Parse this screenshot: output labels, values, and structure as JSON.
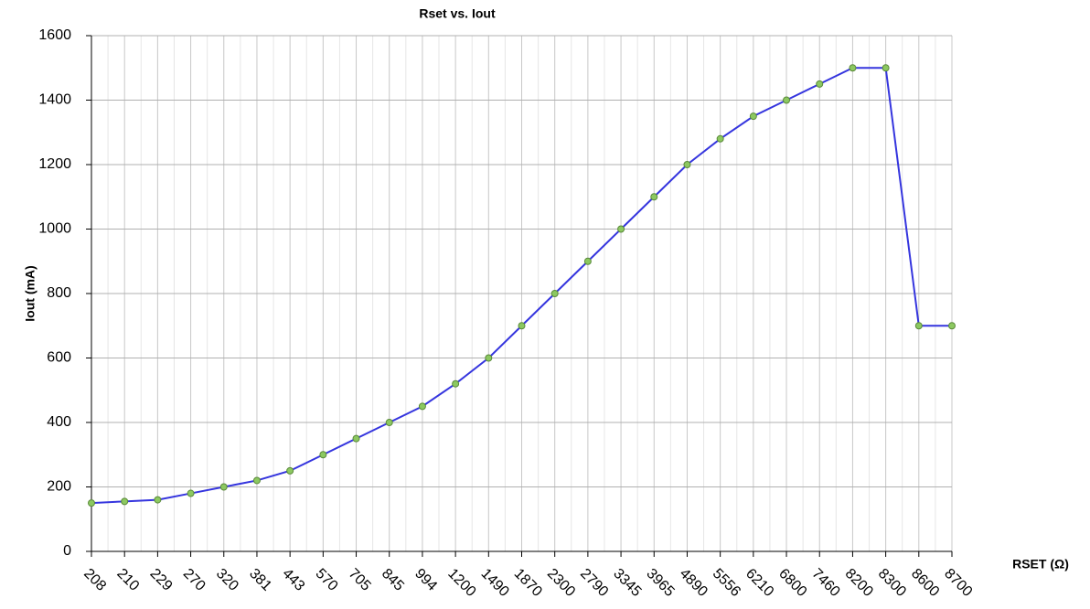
{
  "chart_data": {
    "type": "line",
    "title": "Rset vs. Iout",
    "x_label": "RSET (Ω)",
    "y_label": "Iout (mA)",
    "categories": [
      "208",
      "210",
      "229",
      "270",
      "320",
      "381",
      "443",
      "570",
      "705",
      "845",
      "994",
      "1200",
      "1490",
      "1870",
      "2300",
      "2790",
      "3345",
      "3965",
      "4890",
      "5556",
      "6210",
      "6800",
      "7460",
      "8200",
      "8300",
      "8600",
      "8700"
    ],
    "series": [
      {
        "name": "Iout",
        "color": "#3535de",
        "marker_color": "#8cc860",
        "values": [
          150,
          155,
          160,
          180,
          200,
          220,
          250,
          300,
          350,
          400,
          450,
          520,
          600,
          700,
          800,
          900,
          1000,
          1100,
          1200,
          1280,
          1350,
          1400,
          1450,
          1500,
          1500,
          700,
          700
        ]
      }
    ],
    "ylim": [
      0,
      1600
    ],
    "yticks": [
      0,
      200,
      400,
      600,
      800,
      1000,
      1200,
      1400,
      1600
    ],
    "grid": true
  }
}
